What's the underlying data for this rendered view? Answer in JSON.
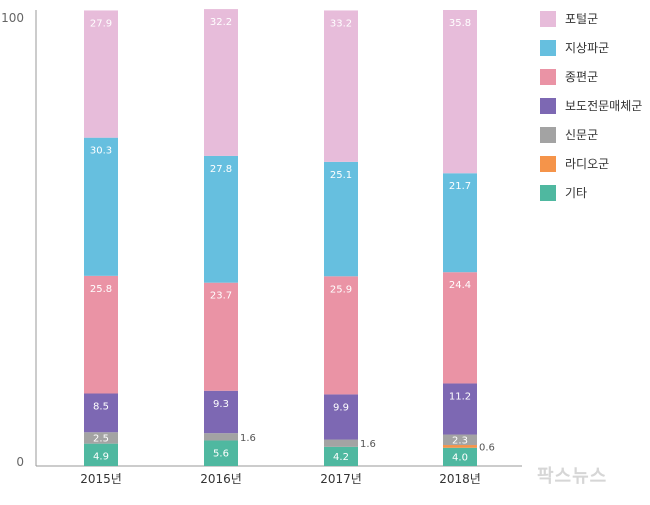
{
  "chart_data": {
    "type": "bar",
    "stacked": true,
    "title": "",
    "xlabel": "",
    "ylabel": "",
    "ylim": [
      0,
      100
    ],
    "yticks": [
      "0",
      "100"
    ],
    "categories": [
      "2015년",
      "2016년",
      "2017년",
      "2018년"
    ],
    "series": [
      {
        "name": "기타",
        "color": "#4fb8a0",
        "values": [
          4.9,
          5.6,
          4.2,
          4.0
        ]
      },
      {
        "name": "라디오군",
        "color": "#f5944a",
        "values": [
          0,
          0,
          0,
          0.6
        ]
      },
      {
        "name": "신문군",
        "color": "#a3a3a3",
        "values": [
          2.5,
          1.6,
          1.6,
          2.3
        ]
      },
      {
        "name": "보도전문매체군",
        "color": "#7d68b3",
        "values": [
          8.5,
          9.3,
          9.9,
          11.2
        ]
      },
      {
        "name": "종편군",
        "color": "#ea93a5",
        "values": [
          25.8,
          23.7,
          25.9,
          24.4
        ]
      },
      {
        "name": "지상파군",
        "color": "#66bfdf",
        "values": [
          30.3,
          27.8,
          25.1,
          21.7
        ]
      },
      {
        "name": "포털군",
        "color": "#e7bcda",
        "values": [
          27.9,
          32.2,
          33.2,
          35.8
        ]
      }
    ],
    "legend_order": [
      "포털군",
      "지상파군",
      "종편군",
      "보도전문매체군",
      "신문군",
      "라디오군",
      "기타"
    ],
    "legend_position": "top-right",
    "grid": false
  },
  "watermark": "팍스뉴스"
}
